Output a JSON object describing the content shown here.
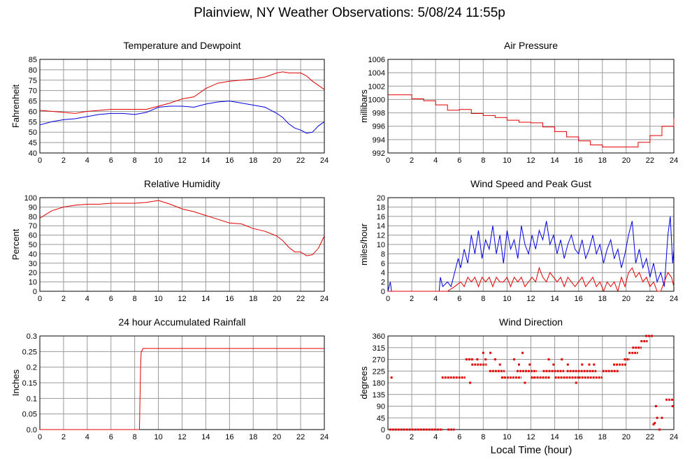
{
  "page": {
    "title": "Plainview, NY Weather Observations: 5/08/24 11:55p",
    "xlabel": "Local Time (hour)"
  },
  "colors": {
    "red": "#e00000",
    "blue": "#0000e0",
    "grid": "#999999"
  },
  "chart_data": [
    {
      "id": "temp",
      "type": "line",
      "title": "Temperature and Dewpoint",
      "ylabel": "Fahrenheit",
      "xlim": [
        0,
        24
      ],
      "ylim": [
        40,
        85
      ],
      "xticks": [
        0,
        2,
        4,
        6,
        8,
        10,
        12,
        14,
        16,
        18,
        20,
        22,
        24
      ],
      "yticks": [
        40,
        45,
        50,
        55,
        60,
        65,
        70,
        75,
        80,
        85
      ],
      "grid": true,
      "series": [
        {
          "color": "red",
          "kind": "line",
          "x": [
            0,
            1,
            2,
            3,
            4,
            5,
            6,
            7,
            8,
            9,
            10,
            11,
            12,
            13,
            14,
            15,
            16,
            17,
            18,
            19,
            20,
            20.5,
            21,
            21.5,
            22,
            22.5,
            23,
            23.5,
            24
          ],
          "y": [
            60.5,
            60,
            59.5,
            59,
            60,
            60.5,
            61,
            61,
            61,
            61,
            62.5,
            64,
            66,
            67,
            71,
            73.5,
            74.5,
            75,
            75.5,
            76.5,
            78.5,
            79,
            78.5,
            78.5,
            78.5,
            77,
            74.5,
            72.5,
            70.5
          ]
        },
        {
          "color": "blue",
          "kind": "line",
          "x": [
            0,
            1,
            2,
            3,
            4,
            5,
            6,
            7,
            8,
            9,
            10,
            11,
            12,
            13,
            14,
            15,
            16,
            17,
            18,
            19,
            20,
            20.5,
            21,
            21.5,
            22,
            22.5,
            23,
            23.5,
            24
          ],
          "y": [
            53.5,
            55,
            56,
            56.5,
            57.5,
            58.5,
            59,
            59,
            58.5,
            59.5,
            62,
            62.5,
            62.5,
            62,
            63.5,
            64.5,
            65,
            64,
            63,
            62,
            59,
            57,
            54,
            52,
            51,
            49.5,
            50,
            53,
            55
          ]
        }
      ]
    },
    {
      "id": "pressure",
      "type": "line",
      "title": "Air Pressure",
      "ylabel": "millibars",
      "xlim": [
        0,
        24
      ],
      "ylim": [
        992,
        1006
      ],
      "xticks": [
        0,
        2,
        4,
        6,
        8,
        10,
        12,
        14,
        16,
        18,
        20,
        22,
        24
      ],
      "yticks": [
        992,
        994,
        996,
        998,
        1000,
        1002,
        1004,
        1006
      ],
      "grid": true,
      "series": [
        {
          "color": "red",
          "kind": "step",
          "x": [
            0,
            1,
            2,
            3,
            4,
            5,
            6,
            7,
            8,
            9,
            10,
            11,
            12,
            13,
            14,
            15,
            16,
            17,
            18,
            19,
            20,
            21,
            22,
            23,
            24
          ],
          "y": [
            1000.7,
            1000.7,
            1000.1,
            999.8,
            999.2,
            998.4,
            998.5,
            997.9,
            997.6,
            997.3,
            996.9,
            996.6,
            996.5,
            995.9,
            995.2,
            994.4,
            993.8,
            993.2,
            992.9,
            992.9,
            992.9,
            993.6,
            994.6,
            996.0,
            997.2
          ]
        }
      ]
    },
    {
      "id": "humidity",
      "type": "line",
      "title": "Relative Humidity",
      "ylabel": "Percent",
      "xlim": [
        0,
        24
      ],
      "ylim": [
        0,
        100
      ],
      "xticks": [
        0,
        2,
        4,
        6,
        8,
        10,
        12,
        14,
        16,
        18,
        20,
        22,
        24
      ],
      "yticks": [
        0,
        10,
        20,
        30,
        40,
        50,
        60,
        70,
        80,
        90,
        100
      ],
      "grid": true,
      "series": [
        {
          "color": "red",
          "kind": "line",
          "x": [
            0,
            0.5,
            1,
            2,
            3,
            4,
            5,
            6,
            7,
            8,
            9,
            10,
            11,
            12,
            13,
            14,
            15,
            16,
            17,
            18,
            19,
            20,
            20.5,
            21,
            21.5,
            22,
            22.5,
            23,
            23.5,
            24
          ],
          "y": [
            78,
            82,
            86,
            90,
            92,
            93,
            93,
            94,
            94,
            94,
            95,
            97,
            93,
            88,
            85,
            81,
            77,
            73,
            72,
            67,
            64,
            59,
            54,
            47,
            42,
            42,
            38,
            39,
            46,
            59
          ]
        }
      ]
    },
    {
      "id": "wind",
      "type": "line",
      "title": "Wind Speed and Peak Gust",
      "ylabel": "miles/hour",
      "xlim": [
        0,
        24
      ],
      "ylim": [
        0,
        20
      ],
      "xticks": [
        0,
        2,
        4,
        6,
        8,
        10,
        12,
        14,
        16,
        18,
        20,
        22,
        24
      ],
      "yticks": [
        0,
        2,
        4,
        6,
        8,
        10,
        12,
        14,
        16,
        18,
        20
      ],
      "grid": true,
      "series": [
        {
          "color": "blue",
          "kind": "line",
          "x": [
            0,
            0.2,
            0.3,
            0.5,
            4.3,
            4.4,
            4.6,
            5.0,
            5.3,
            5.6,
            5.9,
            6.1,
            6.4,
            6.7,
            7.0,
            7.3,
            7.6,
            7.9,
            8.2,
            8.5,
            8.8,
            9.1,
            9.4,
            9.7,
            10.0,
            10.3,
            10.6,
            10.9,
            11.2,
            11.5,
            11.8,
            12.1,
            12.4,
            12.7,
            13.0,
            13.3,
            13.6,
            13.9,
            14.2,
            14.5,
            14.8,
            15.1,
            15.4,
            15.7,
            16.0,
            16.3,
            16.6,
            16.9,
            17.2,
            17.5,
            17.8,
            18.1,
            18.4,
            18.7,
            19.0,
            19.3,
            19.6,
            19.9,
            20.2,
            20.5,
            20.8,
            21.1,
            21.4,
            21.7,
            22.0,
            22.3,
            22.6,
            22.9,
            23.2,
            23.5,
            23.7,
            23.9,
            24
          ],
          "y": [
            0,
            2,
            0,
            0,
            0,
            3,
            1,
            2,
            1,
            4,
            7,
            5,
            9,
            6,
            12,
            8,
            13,
            7,
            11,
            9,
            14,
            8,
            12,
            6,
            13,
            9,
            11,
            7,
            14,
            10,
            8,
            12,
            9,
            13,
            11,
            15,
            10,
            12,
            8,
            11,
            7,
            10,
            12,
            9,
            8,
            11,
            7,
            9,
            12,
            8,
            10,
            6,
            9,
            11,
            7,
            9,
            5,
            8,
            12,
            15,
            6,
            9,
            5,
            7,
            3,
            6,
            2,
            4,
            1,
            12,
            16,
            6,
            9
          ]
        },
        {
          "color": "red",
          "kind": "line",
          "x": [
            0,
            4.3,
            5.0,
            5.6,
            6.1,
            6.4,
            6.7,
            7.0,
            7.3,
            7.6,
            7.9,
            8.2,
            8.5,
            8.8,
            9.1,
            9.4,
            9.7,
            10.0,
            10.3,
            10.6,
            10.9,
            11.2,
            11.5,
            11.8,
            12.1,
            12.4,
            12.7,
            13.0,
            13.3,
            13.6,
            13.9,
            14.2,
            14.5,
            14.8,
            15.1,
            15.4,
            15.7,
            16.0,
            16.3,
            16.6,
            16.9,
            17.2,
            17.5,
            17.8,
            18.1,
            18.4,
            18.7,
            19.0,
            19.3,
            19.6,
            19.9,
            20.2,
            20.5,
            20.8,
            21.1,
            21.4,
            21.7,
            22.0,
            22.3,
            22.6,
            22.9,
            23.2,
            23.5,
            23.8,
            24
          ],
          "y": [
            0,
            0,
            0,
            1,
            2,
            1,
            3,
            2,
            3,
            1,
            3,
            2,
            3,
            1,
            3,
            2,
            2,
            3,
            1,
            3,
            2,
            3,
            1,
            2,
            3,
            2,
            5,
            3,
            2,
            4,
            3,
            2,
            3,
            1,
            3,
            2,
            1,
            2,
            3,
            1,
            2,
            3,
            1,
            2,
            0,
            2,
            1,
            2,
            0,
            3,
            1,
            4,
            5,
            3,
            4,
            2,
            3,
            1,
            2,
            0,
            0,
            2,
            4,
            3,
            1
          ]
        }
      ]
    },
    {
      "id": "rain",
      "type": "line",
      "title": "24 hour Accumulated Rainfall",
      "ylabel": "Inches",
      "xlim": [
        0,
        24
      ],
      "ylim": [
        0,
        0.3
      ],
      "xticks": [
        0,
        2,
        4,
        6,
        8,
        10,
        12,
        14,
        16,
        18,
        20,
        22,
        24
      ],
      "yticks": [
        0,
        0.05,
        0.1,
        0.15,
        0.2,
        0.25,
        0.3
      ],
      "yticklabels": [
        "0.0",
        "0.05",
        "0.1",
        "0.15",
        "0.2",
        "0.25",
        "0.3"
      ],
      "grid": true,
      "series": [
        {
          "color": "red",
          "kind": "line",
          "x": [
            0,
            8.4,
            8.5,
            8.55,
            8.6,
            8.7,
            24
          ],
          "y": [
            0,
            0,
            0.2,
            0.25,
            0.25,
            0.26,
            0.26
          ]
        }
      ]
    },
    {
      "id": "direction",
      "type": "scatter",
      "title": "Wind Direction",
      "ylabel": "degrees",
      "xlim": [
        0,
        24
      ],
      "ylim": [
        0,
        360
      ],
      "xticks": [
        0,
        2,
        4,
        6,
        8,
        10,
        12,
        14,
        16,
        18,
        20,
        22,
        24
      ],
      "yticks": [
        0,
        45,
        90,
        135,
        180,
        225,
        270,
        315,
        360
      ],
      "grid": true,
      "segments": [
        {
          "x0": 0.1,
          "x1": 4.6,
          "y": 0
        },
        {
          "x0": 5.0,
          "x1": 5.6,
          "y": 0
        },
        {
          "x0": 4.5,
          "x1": 6.5,
          "y": 200
        },
        {
          "x0": 6.5,
          "x1": 7.2,
          "y": 270
        },
        {
          "x0": 7.0,
          "x1": 8.3,
          "y": 250
        },
        {
          "x0": 8.5,
          "x1": 9.8,
          "y": 225
        },
        {
          "x0": 9.5,
          "x1": 11.2,
          "y": 200
        },
        {
          "x0": 10.8,
          "x1": 12.5,
          "y": 225
        },
        {
          "x0": 12.0,
          "x1": 13.6,
          "y": 200
        },
        {
          "x0": 13.0,
          "x1": 14.8,
          "y": 225
        },
        {
          "x0": 14.0,
          "x1": 16.0,
          "y": 200
        },
        {
          "x0": 15.0,
          "x1": 17.5,
          "y": 225
        },
        {
          "x0": 16.0,
          "x1": 18.0,
          "y": 200
        },
        {
          "x0": 18.0,
          "x1": 19.4,
          "y": 225
        },
        {
          "x0": 18.9,
          "x1": 20.0,
          "y": 250
        },
        {
          "x0": 19.8,
          "x1": 20.3,
          "y": 270
        },
        {
          "x0": 20.2,
          "x1": 21.0,
          "y": 295
        },
        {
          "x0": 20.5,
          "x1": 21.3,
          "y": 315
        },
        {
          "x0": 21.2,
          "x1": 21.8,
          "y": 340
        },
        {
          "x0": 21.6,
          "x1": 22.3,
          "y": 360
        },
        {
          "x0": 23.3,
          "x1": 24.0,
          "y": 115
        }
      ],
      "points": [
        {
          "x": 0.3,
          "y": 200
        },
        {
          "x": 6.9,
          "y": 180
        },
        {
          "x": 7.5,
          "y": 270
        },
        {
          "x": 8.0,
          "y": 295
        },
        {
          "x": 8.6,
          "y": 295
        },
        {
          "x": 8.2,
          "y": 270
        },
        {
          "x": 9.0,
          "y": 270
        },
        {
          "x": 9.4,
          "y": 250
        },
        {
          "x": 9.8,
          "y": 200
        },
        {
          "x": 10.6,
          "y": 270
        },
        {
          "x": 11.0,
          "y": 250
        },
        {
          "x": 11.3,
          "y": 295
        },
        {
          "x": 11.5,
          "y": 180
        },
        {
          "x": 11.9,
          "y": 250
        },
        {
          "x": 12.3,
          "y": 200
        },
        {
          "x": 13.5,
          "y": 270
        },
        {
          "x": 13.9,
          "y": 250
        },
        {
          "x": 14.6,
          "y": 270
        },
        {
          "x": 15.1,
          "y": 250
        },
        {
          "x": 15.8,
          "y": 180
        },
        {
          "x": 16.3,
          "y": 250
        },
        {
          "x": 16.9,
          "y": 250
        },
        {
          "x": 17.3,
          "y": 250
        },
        {
          "x": 22.3,
          "y": 20
        },
        {
          "x": 22.4,
          "y": 25
        },
        {
          "x": 22.5,
          "y": 90
        },
        {
          "x": 22.6,
          "y": 45
        },
        {
          "x": 22.8,
          "y": 0
        },
        {
          "x": 23.0,
          "y": 45
        },
        {
          "x": 23.9,
          "y": 90
        }
      ]
    }
  ]
}
